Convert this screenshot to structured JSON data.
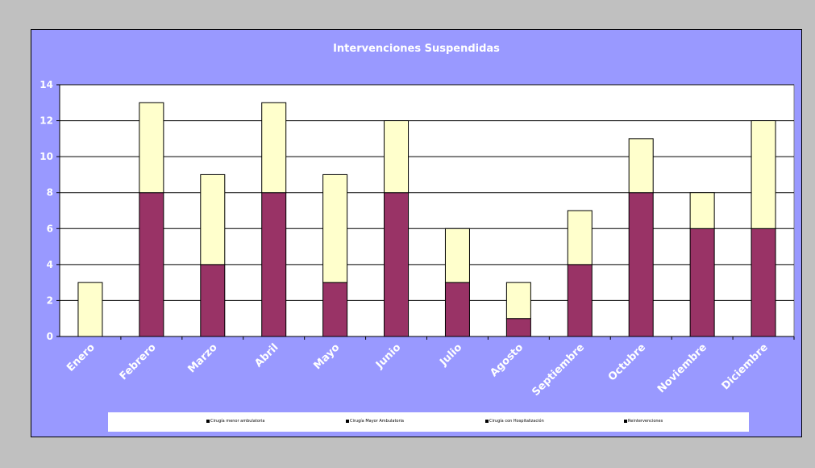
{
  "chart_data": {
    "type": "bar",
    "stacked": true,
    "title": "Intervenciones Suspendidas",
    "categories": [
      "Enero",
      "Febrero",
      "Marzo",
      "Abril",
      "Mayo",
      "Junio",
      "Julio",
      "Agosto",
      "Septiembre",
      "Octubre",
      "Noviembre",
      "Diciembre"
    ],
    "series": [
      {
        "name": "Cirugía Mayor Ambulatoria",
        "color": "#993366",
        "values": [
          0,
          8,
          4,
          8,
          3,
          8,
          3,
          1,
          4,
          8,
          6,
          6
        ]
      },
      {
        "name": "Cirugía menor ambulatoria",
        "color": "#ffffcc",
        "values": [
          3,
          5,
          5,
          5,
          6,
          4,
          3,
          2,
          3,
          3,
          2,
          6
        ]
      }
    ],
    "legend_entries": [
      {
        "label": "Cirugía menor ambulatoria",
        "color": "#000000"
      },
      {
        "label": "Cirugía Mayor Ambulatoria",
        "color": "#000000"
      },
      {
        "label": "Cirugía con Hospitalización",
        "color": "#000000"
      },
      {
        "label": "Reintervenciones",
        "color": "#000000"
      }
    ],
    "ylim": [
      0,
      14
    ],
    "yticks": [
      0,
      2,
      4,
      6,
      8,
      10,
      12,
      14
    ],
    "grid": true,
    "legend_position": "bottom",
    "plot_background": "#ffffff",
    "chart_background": "#9999ff"
  }
}
